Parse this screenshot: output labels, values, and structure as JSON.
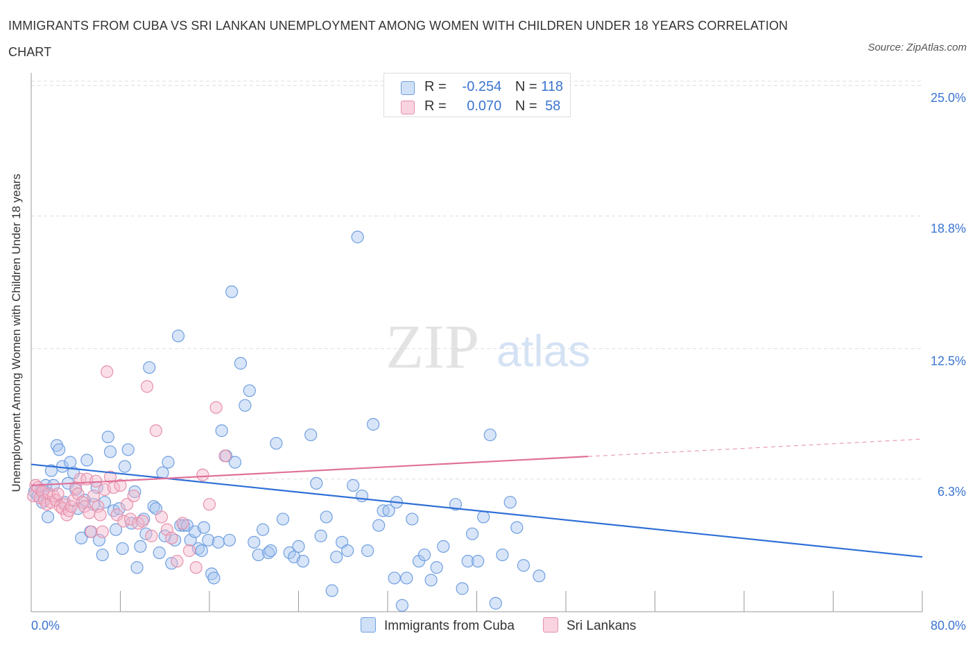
{
  "title": "IMMIGRANTS FROM CUBA VS SRI LANKAN UNEMPLOYMENT AMONG WOMEN WITH CHILDREN UNDER 18 YEARS CORRELATION CHART",
  "source": "Source: ZipAtlas.com",
  "watermark": {
    "zip": "ZIP",
    "atlas": "atlas"
  },
  "legend_top": [
    {
      "r_label": "R =",
      "r_value": "-0.254",
      "n_label": "N =",
      "n_value": "118",
      "color": "#a9c6f0"
    },
    {
      "r_label": "R =",
      "r_value": "0.070",
      "n_label": "N =",
      "n_value": "58",
      "color": "#f4b8cb"
    }
  ],
  "legend_bottom": [
    {
      "label": "Immigrants from Cuba",
      "color": "#a9c6f0"
    },
    {
      "label": "Sri Lankans",
      "color": "#f4b8cb"
    }
  ],
  "colors": {
    "blue_fill": "#a9c6f0",
    "blue_stroke": "#6f9fe0",
    "blue_line": "#2f6fd6",
    "pink_fill": "#f4b8cb",
    "pink_stroke": "#e690ab",
    "pink_line": "#e0719a",
    "tick_label": "#3a74d0",
    "grid": "#dddddd",
    "axis": "#999999"
  },
  "chart_data": {
    "type": "scatter",
    "title": "IMMIGRANTS FROM CUBA VS SRI LANKAN UNEMPLOYMENT AMONG WOMEN WITH CHILDREN UNDER 18 YEARS CORRELATION CHART",
    "xlabel": "",
    "ylabel": "Unemployment Among Women with Children Under 18 years",
    "xlim": [
      0,
      80
    ],
    "ylim": [
      0,
      25.6
    ],
    "x_tick_labels": [
      "0.0%",
      "80.0%"
    ],
    "y_ticks": [
      6.3,
      12.5,
      18.8,
      25.0
    ],
    "y_tick_labels": [
      "6.3%",
      "12.5%",
      "18.8%",
      "25.0%"
    ],
    "grid": true,
    "legend": "top-center",
    "series": [
      {
        "name": "Immigrants from Cuba",
        "r": -0.254,
        "n": 118,
        "trend": {
          "x": [
            0,
            80
          ],
          "y": [
            7.0,
            2.6
          ],
          "dashed_from": null
        },
        "points": [
          [
            0.3,
            5.7
          ],
          [
            0.6,
            5.5
          ],
          [
            0.9,
            5.8
          ],
          [
            1.0,
            5.2
          ],
          [
            1.3,
            6.0
          ],
          [
            1.5,
            4.5
          ],
          [
            1.8,
            6.7
          ],
          [
            2.0,
            6.0
          ],
          [
            2.3,
            7.9
          ],
          [
            2.5,
            7.7
          ],
          [
            2.8,
            6.9
          ],
          [
            3.0,
            5.2
          ],
          [
            3.3,
            6.1
          ],
          [
            3.5,
            7.1
          ],
          [
            3.8,
            6.6
          ],
          [
            4.0,
            5.8
          ],
          [
            4.2,
            4.9
          ],
          [
            4.5,
            3.5
          ],
          [
            4.8,
            5.3
          ],
          [
            5.0,
            7.2
          ],
          [
            5.3,
            3.8
          ],
          [
            5.6,
            5.1
          ],
          [
            5.9,
            5.9
          ],
          [
            6.1,
            3.4
          ],
          [
            6.4,
            2.7
          ],
          [
            6.6,
            5.2
          ],
          [
            6.9,
            8.3
          ],
          [
            7.1,
            7.6
          ],
          [
            7.4,
            4.8
          ],
          [
            7.6,
            3.9
          ],
          [
            7.9,
            4.9
          ],
          [
            8.2,
            3.0
          ],
          [
            8.4,
            6.9
          ],
          [
            8.7,
            7.7
          ],
          [
            9.0,
            4.2
          ],
          [
            9.3,
            5.7
          ],
          [
            9.5,
            2.1
          ],
          [
            9.8,
            3.1
          ],
          [
            10.1,
            4.4
          ],
          [
            10.3,
            3.7
          ],
          [
            10.6,
            11.6
          ],
          [
            11.0,
            5.0
          ],
          [
            11.2,
            4.9
          ],
          [
            11.5,
            2.8
          ],
          [
            11.8,
            6.6
          ],
          [
            12.0,
            3.6
          ],
          [
            12.3,
            7.1
          ],
          [
            12.6,
            2.3
          ],
          [
            12.9,
            3.4
          ],
          [
            13.2,
            13.1
          ],
          [
            13.4,
            4.1
          ],
          [
            13.7,
            4.1
          ],
          [
            14.0,
            4.1
          ],
          [
            14.3,
            3.4
          ],
          [
            14.7,
            3.8
          ],
          [
            15.0,
            3.0
          ],
          [
            15.3,
            2.9
          ],
          [
            15.5,
            4.0
          ],
          [
            15.9,
            3.4
          ],
          [
            16.2,
            1.8
          ],
          [
            16.4,
            1.6
          ],
          [
            16.8,
            3.3
          ],
          [
            17.1,
            8.6
          ],
          [
            17.5,
            7.4
          ],
          [
            17.8,
            3.4
          ],
          [
            18.0,
            15.2
          ],
          [
            18.3,
            7.1
          ],
          [
            18.8,
            11.8
          ],
          [
            19.2,
            9.8
          ],
          [
            19.6,
            10.5
          ],
          [
            20.0,
            3.3
          ],
          [
            20.4,
            2.7
          ],
          [
            20.8,
            3.9
          ],
          [
            21.3,
            2.8
          ],
          [
            21.5,
            2.9
          ],
          [
            22.0,
            8.0
          ],
          [
            22.6,
            4.4
          ],
          [
            23.2,
            2.8
          ],
          [
            23.6,
            2.6
          ],
          [
            24.0,
            3.1
          ],
          [
            24.4,
            2.4
          ],
          [
            25.1,
            8.4
          ],
          [
            25.6,
            6.1
          ],
          [
            26.0,
            3.6
          ],
          [
            26.5,
            4.5
          ],
          [
            27.0,
            1.0
          ],
          [
            27.4,
            2.6
          ],
          [
            27.9,
            3.3
          ],
          [
            28.4,
            2.9
          ],
          [
            28.9,
            6.0
          ],
          [
            29.3,
            17.8
          ],
          [
            29.7,
            5.5
          ],
          [
            30.2,
            2.9
          ],
          [
            30.7,
            8.9
          ],
          [
            31.2,
            4.1
          ],
          [
            31.6,
            4.8
          ],
          [
            32.1,
            4.8
          ],
          [
            32.6,
            1.6
          ],
          [
            32.8,
            5.2
          ],
          [
            33.3,
            0.3
          ],
          [
            33.7,
            1.6
          ],
          [
            34.2,
            4.4
          ],
          [
            34.8,
            2.4
          ],
          [
            35.3,
            2.7
          ],
          [
            35.9,
            1.5
          ],
          [
            36.4,
            2.1
          ],
          [
            37.0,
            3.1
          ],
          [
            38.1,
            5.1
          ],
          [
            38.7,
            1.1
          ],
          [
            39.2,
            2.4
          ],
          [
            39.6,
            3.7
          ],
          [
            40.1,
            2.4
          ],
          [
            40.6,
            4.5
          ],
          [
            41.2,
            8.4
          ],
          [
            41.7,
            0.4
          ],
          [
            42.3,
            2.7
          ],
          [
            43.0,
            5.2
          ],
          [
            43.6,
            4.0
          ],
          [
            44.2,
            2.2
          ],
          [
            45.6,
            1.7
          ]
        ]
      },
      {
        "name": "Sri Lankans",
        "r": 0.07,
        "n": 58,
        "trend": {
          "x": [
            0,
            80
          ],
          "y": [
            6.0,
            8.2
          ],
          "dashed_from": 50
        },
        "points": [
          [
            0.2,
            5.5
          ],
          [
            0.4,
            6.0
          ],
          [
            0.6,
            5.9
          ],
          [
            0.8,
            5.4
          ],
          [
            1.0,
            5.7
          ],
          [
            1.2,
            5.3
          ],
          [
            1.4,
            5.1
          ],
          [
            1.6,
            5.6
          ],
          [
            1.8,
            5.2
          ],
          [
            2.0,
            5.5
          ],
          [
            2.2,
            5.3
          ],
          [
            2.4,
            5.6
          ],
          [
            2.6,
            5.0
          ],
          [
            2.8,
            4.9
          ],
          [
            3.0,
            5.1
          ],
          [
            3.2,
            4.6
          ],
          [
            3.4,
            4.8
          ],
          [
            3.6,
            5.0
          ],
          [
            3.8,
            5.3
          ],
          [
            4.0,
            5.9
          ],
          [
            4.2,
            5.6
          ],
          [
            4.4,
            6.3
          ],
          [
            4.6,
            5.2
          ],
          [
            4.8,
            5.0
          ],
          [
            5.0,
            6.3
          ],
          [
            5.2,
            4.7
          ],
          [
            5.4,
            3.8
          ],
          [
            5.6,
            5.5
          ],
          [
            5.8,
            6.2
          ],
          [
            6.0,
            5.0
          ],
          [
            6.2,
            4.6
          ],
          [
            6.4,
            3.8
          ],
          [
            6.6,
            5.8
          ],
          [
            6.8,
            11.4
          ],
          [
            7.1,
            6.4
          ],
          [
            7.4,
            5.9
          ],
          [
            7.7,
            4.6
          ],
          [
            8.0,
            6.0
          ],
          [
            8.3,
            4.3
          ],
          [
            8.6,
            5.1
          ],
          [
            8.9,
            4.4
          ],
          [
            9.2,
            5.5
          ],
          [
            9.6,
            4.2
          ],
          [
            10.0,
            4.3
          ],
          [
            10.4,
            10.7
          ],
          [
            10.8,
            3.6
          ],
          [
            11.2,
            8.6
          ],
          [
            11.7,
            4.5
          ],
          [
            12.2,
            3.9
          ],
          [
            12.6,
            3.5
          ],
          [
            13.1,
            2.4
          ],
          [
            13.6,
            4.2
          ],
          [
            14.2,
            2.9
          ],
          [
            14.8,
            2.1
          ],
          [
            15.4,
            6.5
          ],
          [
            16.0,
            5.1
          ],
          [
            16.6,
            9.7
          ],
          [
            17.4,
            7.4
          ]
        ]
      }
    ]
  }
}
